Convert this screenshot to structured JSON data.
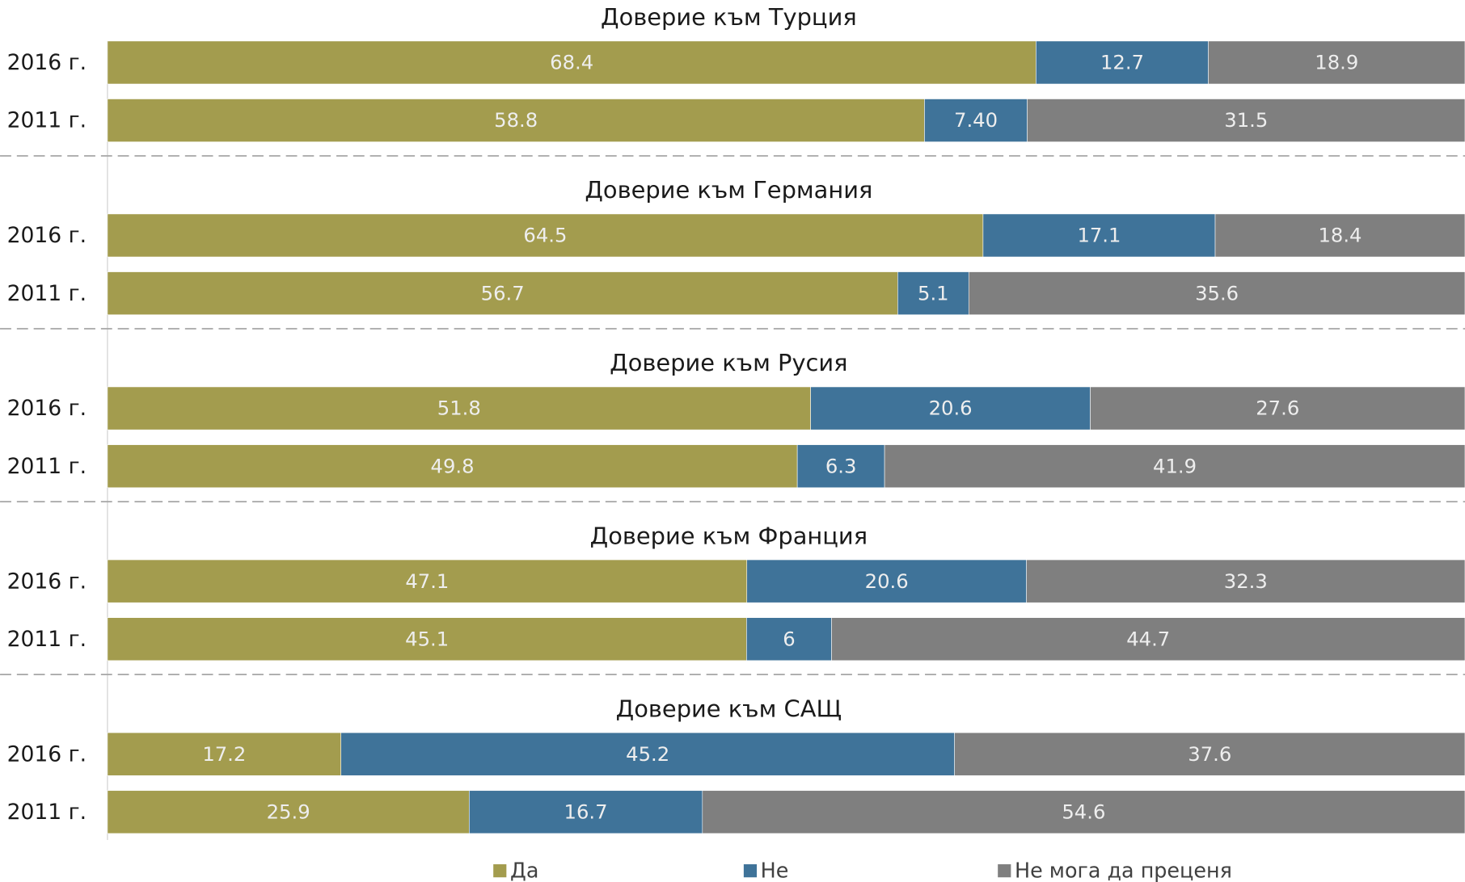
{
  "chart_data": [
    {
      "type": "bar",
      "stacking": "percent",
      "title": "Доверие към Турция",
      "categories": [
        "2016 г.",
        "2011 г."
      ],
      "series": [
        {
          "name": "Да",
          "color": "#a39c4e",
          "values": [
            68.4,
            58.8
          ]
        },
        {
          "name": "Не",
          "color": "#3f7399",
          "values": [
            12.7,
            7.4
          ],
          "value_labels": [
            "12.7",
            "7.40"
          ]
        },
        {
          "name": "Не мога да преценя",
          "color": "#7f7f7f",
          "values": [
            18.9,
            31.5
          ]
        }
      ]
    },
    {
      "type": "bar",
      "stacking": "percent",
      "title": "Доверие към Германия",
      "categories": [
        "2016 г.",
        "2011 г."
      ],
      "series": [
        {
          "name": "Да",
          "color": "#a39c4e",
          "values": [
            64.5,
            56.7
          ]
        },
        {
          "name": "Не",
          "color": "#3f7399",
          "values": [
            17.1,
            5.1
          ]
        },
        {
          "name": "Не мога да преценя",
          "color": "#7f7f7f",
          "values": [
            18.4,
            35.6
          ]
        }
      ]
    },
    {
      "type": "bar",
      "stacking": "percent",
      "title": "Доверие към Русия",
      "categories": [
        "2016 г.",
        "2011 г."
      ],
      "series": [
        {
          "name": "Да",
          "color": "#a39c4e",
          "values": [
            51.8,
            49.8
          ]
        },
        {
          "name": "Не",
          "color": "#3f7399",
          "values": [
            20.6,
            6.3
          ]
        },
        {
          "name": "Не мога да преценя",
          "color": "#7f7f7f",
          "values": [
            27.6,
            41.9
          ]
        }
      ]
    },
    {
      "type": "bar",
      "stacking": "percent",
      "title": "Доверие към Франция",
      "categories": [
        "2016 г.",
        "2011 г."
      ],
      "series": [
        {
          "name": "Да",
          "color": "#a39c4e",
          "values": [
            47.1,
            45.1
          ]
        },
        {
          "name": "Не",
          "color": "#3f7399",
          "values": [
            20.6,
            6
          ]
        },
        {
          "name": "Не мога да преценя",
          "color": "#7f7f7f",
          "values": [
            32.3,
            44.7
          ]
        }
      ]
    },
    {
      "type": "bar",
      "stacking": "percent",
      "title": "Доверие към САЩ",
      "categories": [
        "2016 г.",
        "2011 г."
      ],
      "series": [
        {
          "name": "Да",
          "color": "#a39c4e",
          "values": [
            17.2,
            25.9
          ]
        },
        {
          "name": "Не",
          "color": "#3f7399",
          "values": [
            45.2,
            16.7
          ]
        },
        {
          "name": "Не мога да преценя",
          "color": "#7f7f7f",
          "values": [
            37.6,
            54.6
          ]
        }
      ]
    }
  ]
}
